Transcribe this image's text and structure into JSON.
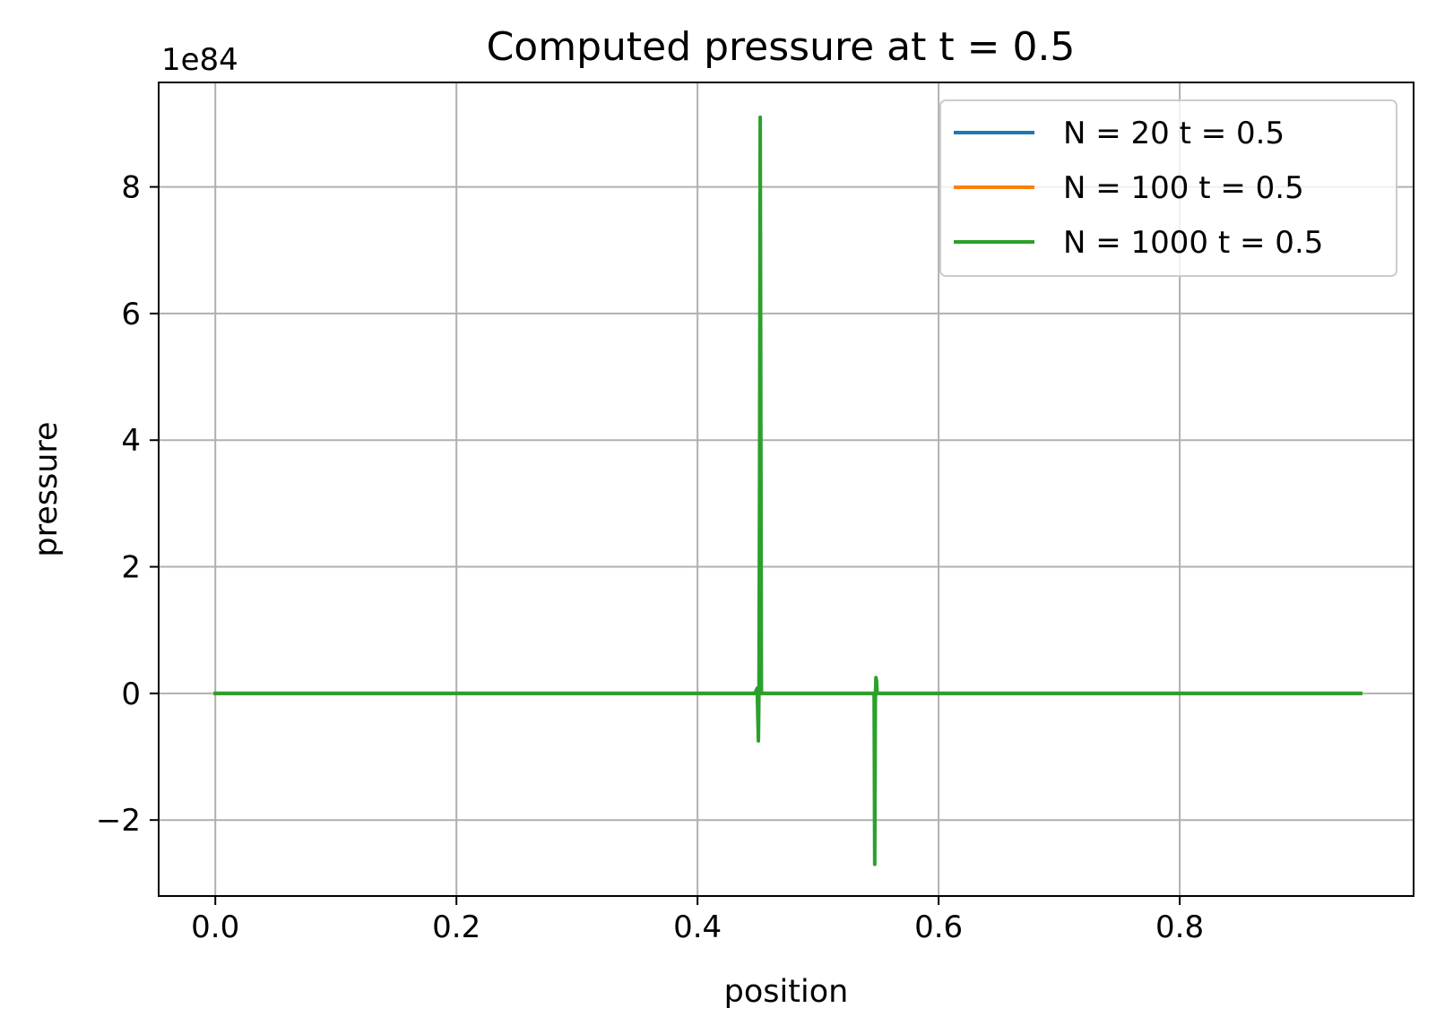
{
  "chart_data": {
    "type": "line",
    "title": "Computed pressure at t = 0.5",
    "xlabel": "position",
    "ylabel": "pressure",
    "offset_text": "1e84",
    "xlim": [
      -0.047,
      0.994
    ],
    "ylim": [
      -3.2,
      9.65
    ],
    "x_ticks": [
      0.0,
      0.2,
      0.4,
      0.6,
      0.8
    ],
    "x_tick_labels": [
      "0.0",
      "0.2",
      "0.4",
      "0.6",
      "0.8"
    ],
    "y_ticks": [
      -2,
      0,
      2,
      4,
      6,
      8
    ],
    "y_tick_labels": [
      "−2",
      "0",
      "2",
      "4",
      "6",
      "8"
    ],
    "grid": true,
    "legend_position": "top-right",
    "series": [
      {
        "name": "N = 20 t = 0.5",
        "color": "#1f77b4",
        "x": [
          0.0,
          0.95
        ],
        "y": [
          0,
          0
        ]
      },
      {
        "name": "N = 100 t = 0.5",
        "color": "#ff7f0e",
        "x": [
          0.0,
          0.95
        ],
        "y": [
          0,
          0
        ]
      },
      {
        "name": "N = 1000 t = 0.5",
        "color": "#2ca02c",
        "x": [
          0.0,
          0.447,
          0.448,
          0.4495,
          0.4505,
          0.451,
          0.4515,
          0.452,
          0.453,
          0.46,
          0.54,
          0.5465,
          0.547,
          0.5475,
          0.548,
          0.5485,
          0.549,
          0.55,
          0.6,
          0.95
        ],
        "y": [
          0,
          0,
          0.02,
          0.08,
          -0.75,
          0.1,
          3.5,
          9.1,
          0,
          0,
          0,
          0,
          -2.7,
          -0.1,
          0.25,
          0.2,
          0,
          0,
          0,
          0
        ]
      }
    ]
  }
}
